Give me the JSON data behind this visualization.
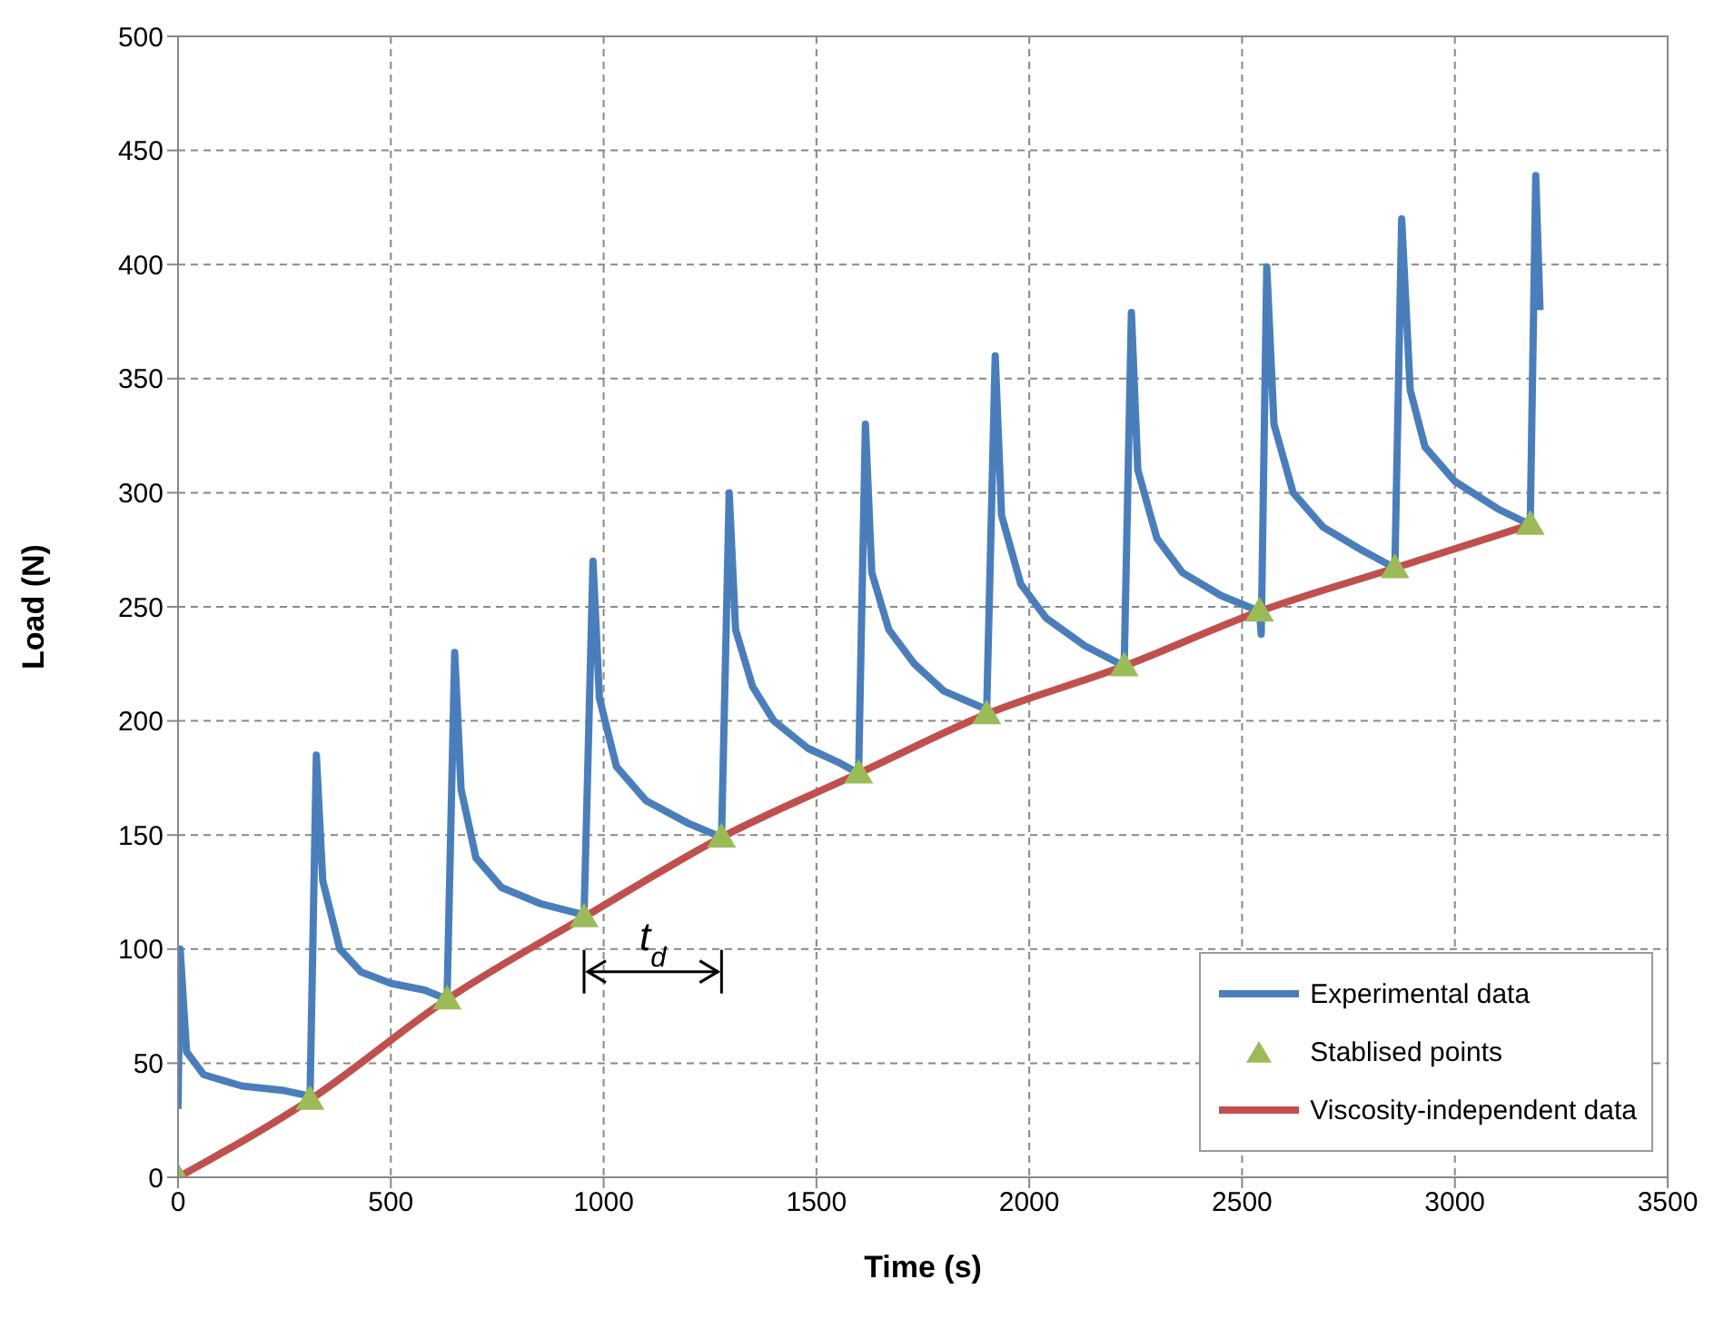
{
  "chart_data": {
    "type": "line",
    "xlabel": "Time (s)",
    "ylabel": "Load (N)",
    "xlim": [
      0,
      3500
    ],
    "xticks": [
      0,
      500,
      1000,
      1500,
      2000,
      2500,
      3000,
      3500
    ],
    "ylim": [
      0,
      500
    ],
    "yticks": [
      0,
      50,
      100,
      150,
      200,
      250,
      300,
      350,
      400,
      450,
      500
    ],
    "grid": true,
    "legend": "bottom right",
    "annotations": [
      "t$_{d}$"
    ],
    "series": [
      {
        "name": "Experimental data",
        "color": "#4a7ebb",
        "marker": "none",
        "x": [
          0,
          5,
          20,
          60,
          150,
          250,
          300,
          310,
          325,
          340,
          380,
          430,
          500,
          580,
          632,
          650,
          665,
          700,
          760,
          850,
          954,
          975,
          990,
          1030,
          1100,
          1200,
          1277,
          1295,
          1310,
          1350,
          1400,
          1480,
          1550,
          1599,
          1615,
          1630,
          1670,
          1730,
          1800,
          1900,
          1920,
          1935,
          1980,
          2040,
          2130,
          2223,
          2240,
          2255,
          2300,
          2360,
          2450,
          2541,
          2545,
          2558,
          2575,
          2620,
          2690,
          2780,
          2859,
          2875,
          2895,
          2930,
          3000,
          3100,
          3177,
          3190,
          3200
        ],
        "values": [
          30,
          100,
          55,
          45,
          40,
          38,
          36,
          34,
          185,
          130,
          100,
          90,
          85,
          82,
          78,
          230,
          170,
          140,
          127,
          120,
          115,
          270,
          210,
          180,
          165,
          155,
          149,
          300,
          240,
          215,
          200,
          188,
          182,
          177,
          330,
          265,
          240,
          225,
          213,
          205,
          360,
          290,
          260,
          245,
          233,
          224,
          379,
          310,
          280,
          265,
          255,
          248,
          238,
          399,
          330,
          300,
          285,
          275,
          267,
          420,
          345,
          320,
          305,
          293,
          286,
          439,
          380
        ]
      },
      {
        "name": "Stablised points",
        "type": "scatter",
        "color": "#9bbb59",
        "marker": "triangle",
        "x": [
          0,
          310,
          632,
          954,
          1277,
          1599,
          1900,
          2223,
          2541,
          2859,
          3177
        ],
        "values": [
          0,
          34,
          78,
          114,
          149,
          177,
          203,
          224,
          248,
          267,
          286
        ]
      },
      {
        "name": "Viscosity-independent data",
        "color": "#c0504d",
        "marker": "none",
        "x": [
          0,
          310,
          632,
          954,
          1277,
          1599,
          1900,
          2223,
          2541,
          2859,
          3177
        ],
        "values": [
          0,
          34,
          78,
          114,
          149,
          177,
          203,
          224,
          248,
          267,
          286
        ]
      }
    ]
  }
}
